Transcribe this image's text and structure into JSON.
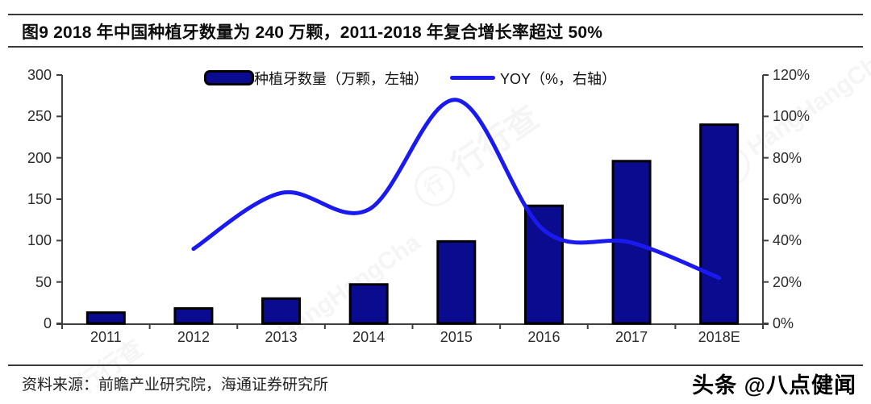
{
  "title": "图9  2018 年中国种植牙数量为 240 万颗，2011-2018 年复合增长率超过 50%",
  "legend": {
    "bar_label": "种植牙数量（万颗，左轴）",
    "line_label": "YOY（%，右轴）"
  },
  "footer": {
    "source": "资料来源：前瞻产业研究院，海通证券研究所",
    "credit": "头条 @八点健闻"
  },
  "watermark": {
    "brand": "行行查",
    "brand_latin": "HangHangCha",
    "logo_char": "行"
  },
  "colors": {
    "bar_fill": "#0b0b8f",
    "bar_border": "#000000",
    "line": "#1a1af0",
    "axis": "#3f3f3f",
    "rule": "#3a3a3a"
  },
  "chart_data": {
    "type": "bar",
    "categories": [
      "2011",
      "2012",
      "2013",
      "2014",
      "2015",
      "2016",
      "2017",
      "2018E"
    ],
    "series": [
      {
        "name": "种植牙数量（万颗，左轴）",
        "type": "bar",
        "axis": "left",
        "values": [
          13,
          18,
          30,
          47,
          99,
          142,
          196,
          240
        ]
      },
      {
        "name": "YOY（%，右轴）",
        "type": "line",
        "axis": "right",
        "values": [
          null,
          36,
          63,
          55,
          108,
          45,
          39,
          22
        ]
      }
    ],
    "title": "2018 年中国种植牙数量为 240 万颗",
    "xlabel": "",
    "ylabel_left": "万颗",
    "ylabel_right": "%",
    "left_axis": {
      "min": 0,
      "max": 300,
      "step": 50,
      "ticks": [
        "0",
        "50",
        "100",
        "150",
        "200",
        "250",
        "300"
      ]
    },
    "right_axis": {
      "min": 0,
      "max": 120,
      "step": 20,
      "ticks": [
        "0%",
        "20%",
        "40%",
        "60%",
        "80%",
        "100%",
        "120%"
      ]
    },
    "grid": false,
    "legend_position": "top"
  }
}
